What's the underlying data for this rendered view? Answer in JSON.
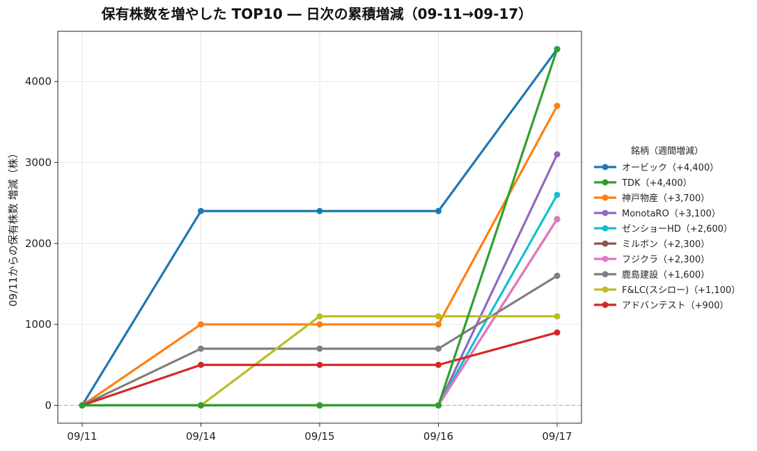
{
  "chart_data": {
    "type": "line",
    "title": "保有株数を増やした TOP10 ― 日次の累積増減（09-11→09-17）",
    "xlabel": "",
    "ylabel": "09/11からの保有株数 増減（株）",
    "x": [
      "09/11",
      "09/14",
      "09/15",
      "09/16",
      "09/17"
    ],
    "ylim": [
      -220,
      4620
    ],
    "yticks": [
      0,
      1000,
      2000,
      3000,
      4000
    ],
    "grid": true,
    "zero_line": true,
    "legend": {
      "title": "銘柄（週間増減）",
      "position": "right"
    },
    "series": [
      {
        "name": "オービック（+4,400）",
        "color": "#1f77b4",
        "values": [
          0,
          2400,
          2400,
          2400,
          4400
        ]
      },
      {
        "name": "TDK（+4,400）",
        "color": "#2ca02c",
        "values": [
          0,
          0,
          0,
          0,
          4400
        ]
      },
      {
        "name": "神戸物産（+3,700）",
        "color": "#ff7f0e",
        "values": [
          0,
          1000,
          1000,
          1000,
          3700
        ]
      },
      {
        "name": "MonotaRO（+3,100）",
        "color": "#9467bd",
        "values": [
          0,
          0,
          0,
          0,
          3100
        ]
      },
      {
        "name": "ゼンショーHD（+2,600）",
        "color": "#17becf",
        "values": [
          0,
          0,
          0,
          0,
          2600
        ]
      },
      {
        "name": "ミルボン（+2,300）",
        "color": "#8c564b",
        "values": [
          0,
          0,
          0,
          0,
          2300
        ]
      },
      {
        "name": "フジクラ（+2,300）",
        "color": "#e377c2",
        "values": [
          0,
          0,
          0,
          0,
          2300
        ]
      },
      {
        "name": "鹿島建設（+1,600）",
        "color": "#7f7f7f",
        "values": [
          0,
          700,
          700,
          700,
          1600
        ]
      },
      {
        "name": "F&LC(スシロー)（+1,100）",
        "color": "#bcbd22",
        "values": [
          0,
          0,
          1100,
          1100,
          1100
        ]
      },
      {
        "name": "アドバンテスト（+900）",
        "color": "#d62728",
        "values": [
          0,
          500,
          500,
          500,
          900
        ]
      }
    ],
    "draw_order": [
      0,
      2,
      3,
      4,
      5,
      6,
      7,
      8,
      9,
      1
    ]
  }
}
